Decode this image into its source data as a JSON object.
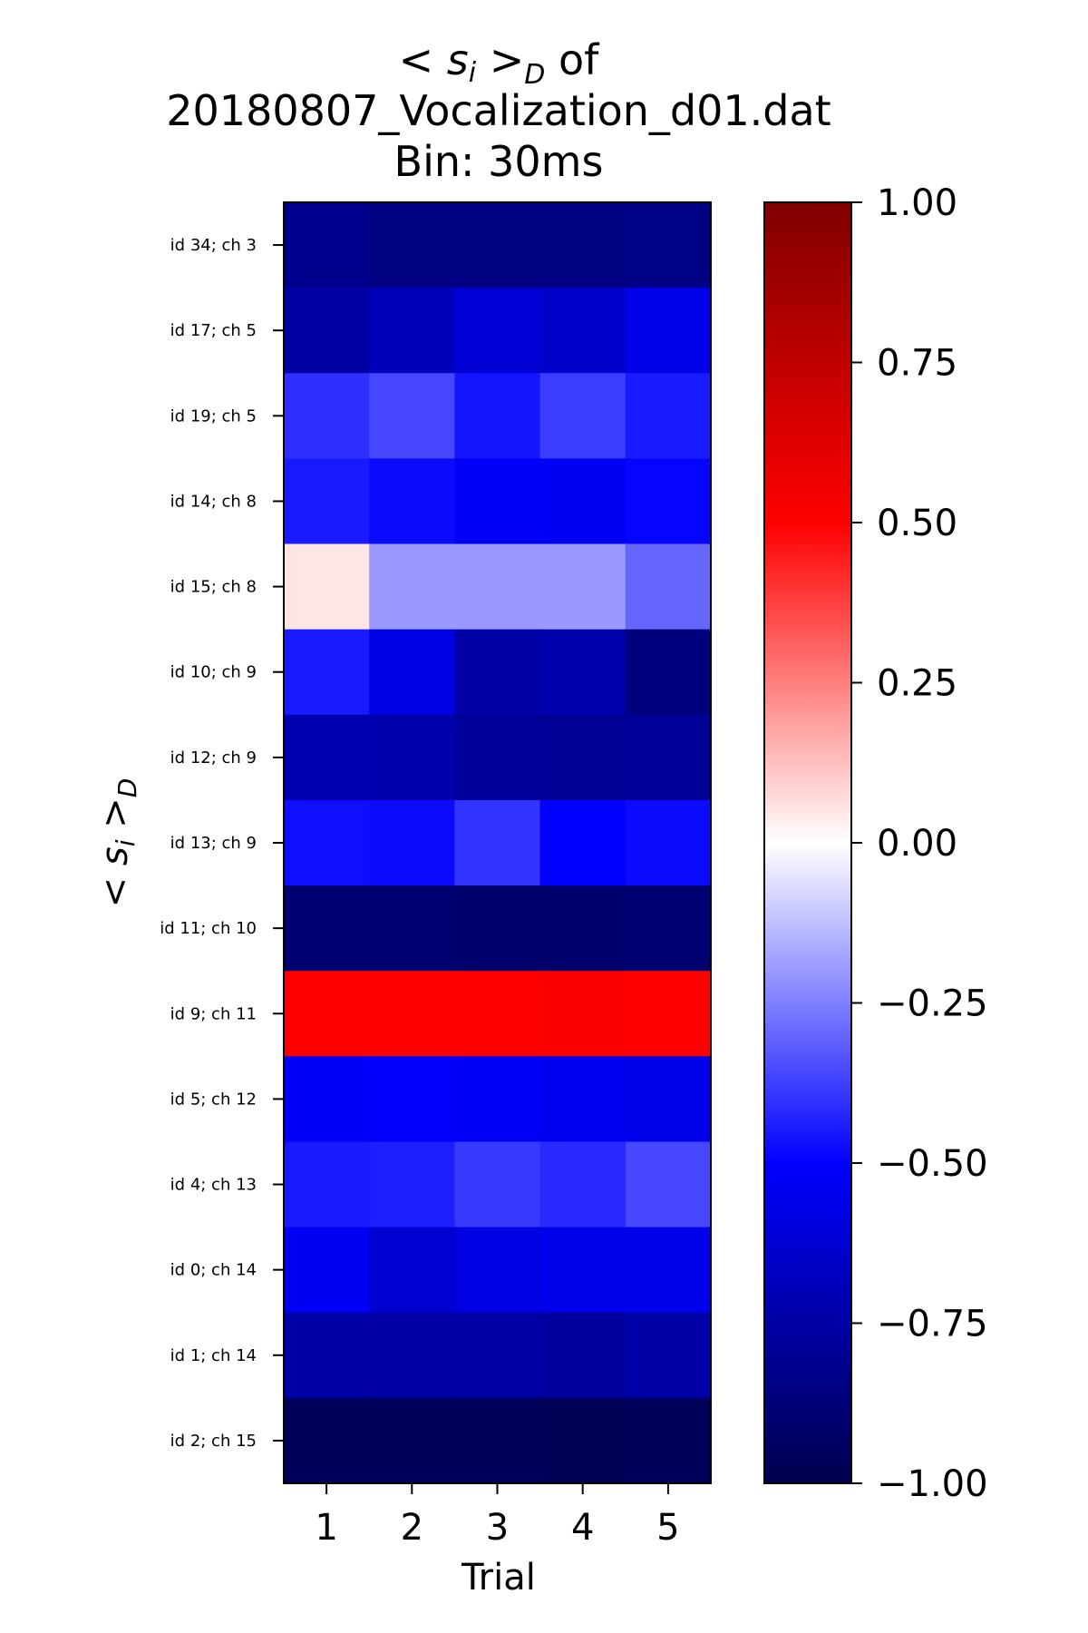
{
  "chart_data": {
    "type": "heatmap",
    "title": [
      "< s_i >_D of",
      "20180807_Vocalization_d01.dat",
      "Bin: 30ms"
    ],
    "title_math": {
      "open": "< ",
      "var": "s",
      "sub_i": "i",
      "close": " >",
      "sub_D": "D",
      "tail": " of"
    },
    "xlabel": "Trial",
    "ylabel": {
      "open": "< ",
      "var": "s",
      "sub_i": "i",
      "close": " >",
      "sub_D": "D"
    },
    "x_ticks": [
      "1",
      "2",
      "3",
      "4",
      "5"
    ],
    "y_ticks": [
      "id 34; ch 3",
      "id 17; ch 5",
      "id 19; ch 5",
      "id 14; ch 8",
      "id 15; ch 8",
      "id 10; ch 9",
      "id 12; ch 9",
      "id 13; ch 9",
      "id 11; ch 10",
      "id 9; ch 11",
      "id 5; ch 12",
      "id 4; ch 13",
      "id 0; ch 14",
      "id 1; ch 14",
      "id 2; ch 15"
    ],
    "values": [
      [
        -0.82,
        -0.85,
        -0.85,
        -0.85,
        -0.84
      ],
      [
        -0.76,
        -0.69,
        -0.62,
        -0.64,
        -0.56
      ],
      [
        -0.41,
        -0.36,
        -0.46,
        -0.38,
        -0.45
      ],
      [
        -0.45,
        -0.48,
        -0.52,
        -0.53,
        -0.49
      ],
      [
        0.05,
        -0.2,
        -0.2,
        -0.2,
        -0.3
      ],
      [
        -0.45,
        -0.58,
        -0.75,
        -0.73,
        -0.86
      ],
      [
        -0.72,
        -0.73,
        -0.78,
        -0.8,
        -0.79
      ],
      [
        -0.47,
        -0.48,
        -0.4,
        -0.5,
        -0.48
      ],
      [
        -0.9,
        -0.9,
        -0.91,
        -0.91,
        -0.9
      ],
      [
        0.5,
        0.5,
        0.5,
        0.51,
        0.5
      ],
      [
        -0.52,
        -0.51,
        -0.52,
        -0.54,
        -0.56
      ],
      [
        -0.45,
        -0.44,
        -0.39,
        -0.42,
        -0.36
      ],
      [
        -0.53,
        -0.63,
        -0.58,
        -0.56,
        -0.56
      ],
      [
        -0.74,
        -0.75,
        -0.75,
        -0.77,
        -0.74
      ],
      [
        -0.96,
        -0.96,
        -0.96,
        -0.97,
        -0.96
      ]
    ],
    "colormap": "seismic",
    "vmin": -1.0,
    "vmax": 1.0,
    "colorbar_ticks": [
      "1.00",
      "0.75",
      "0.50",
      "0.25",
      "0.00",
      "−0.25",
      "−0.50",
      "−0.75",
      "−1.00"
    ],
    "colorbar_tick_values": [
      1.0,
      0.75,
      0.5,
      0.25,
      0.0,
      -0.25,
      -0.5,
      -0.75,
      -1.0
    ]
  }
}
